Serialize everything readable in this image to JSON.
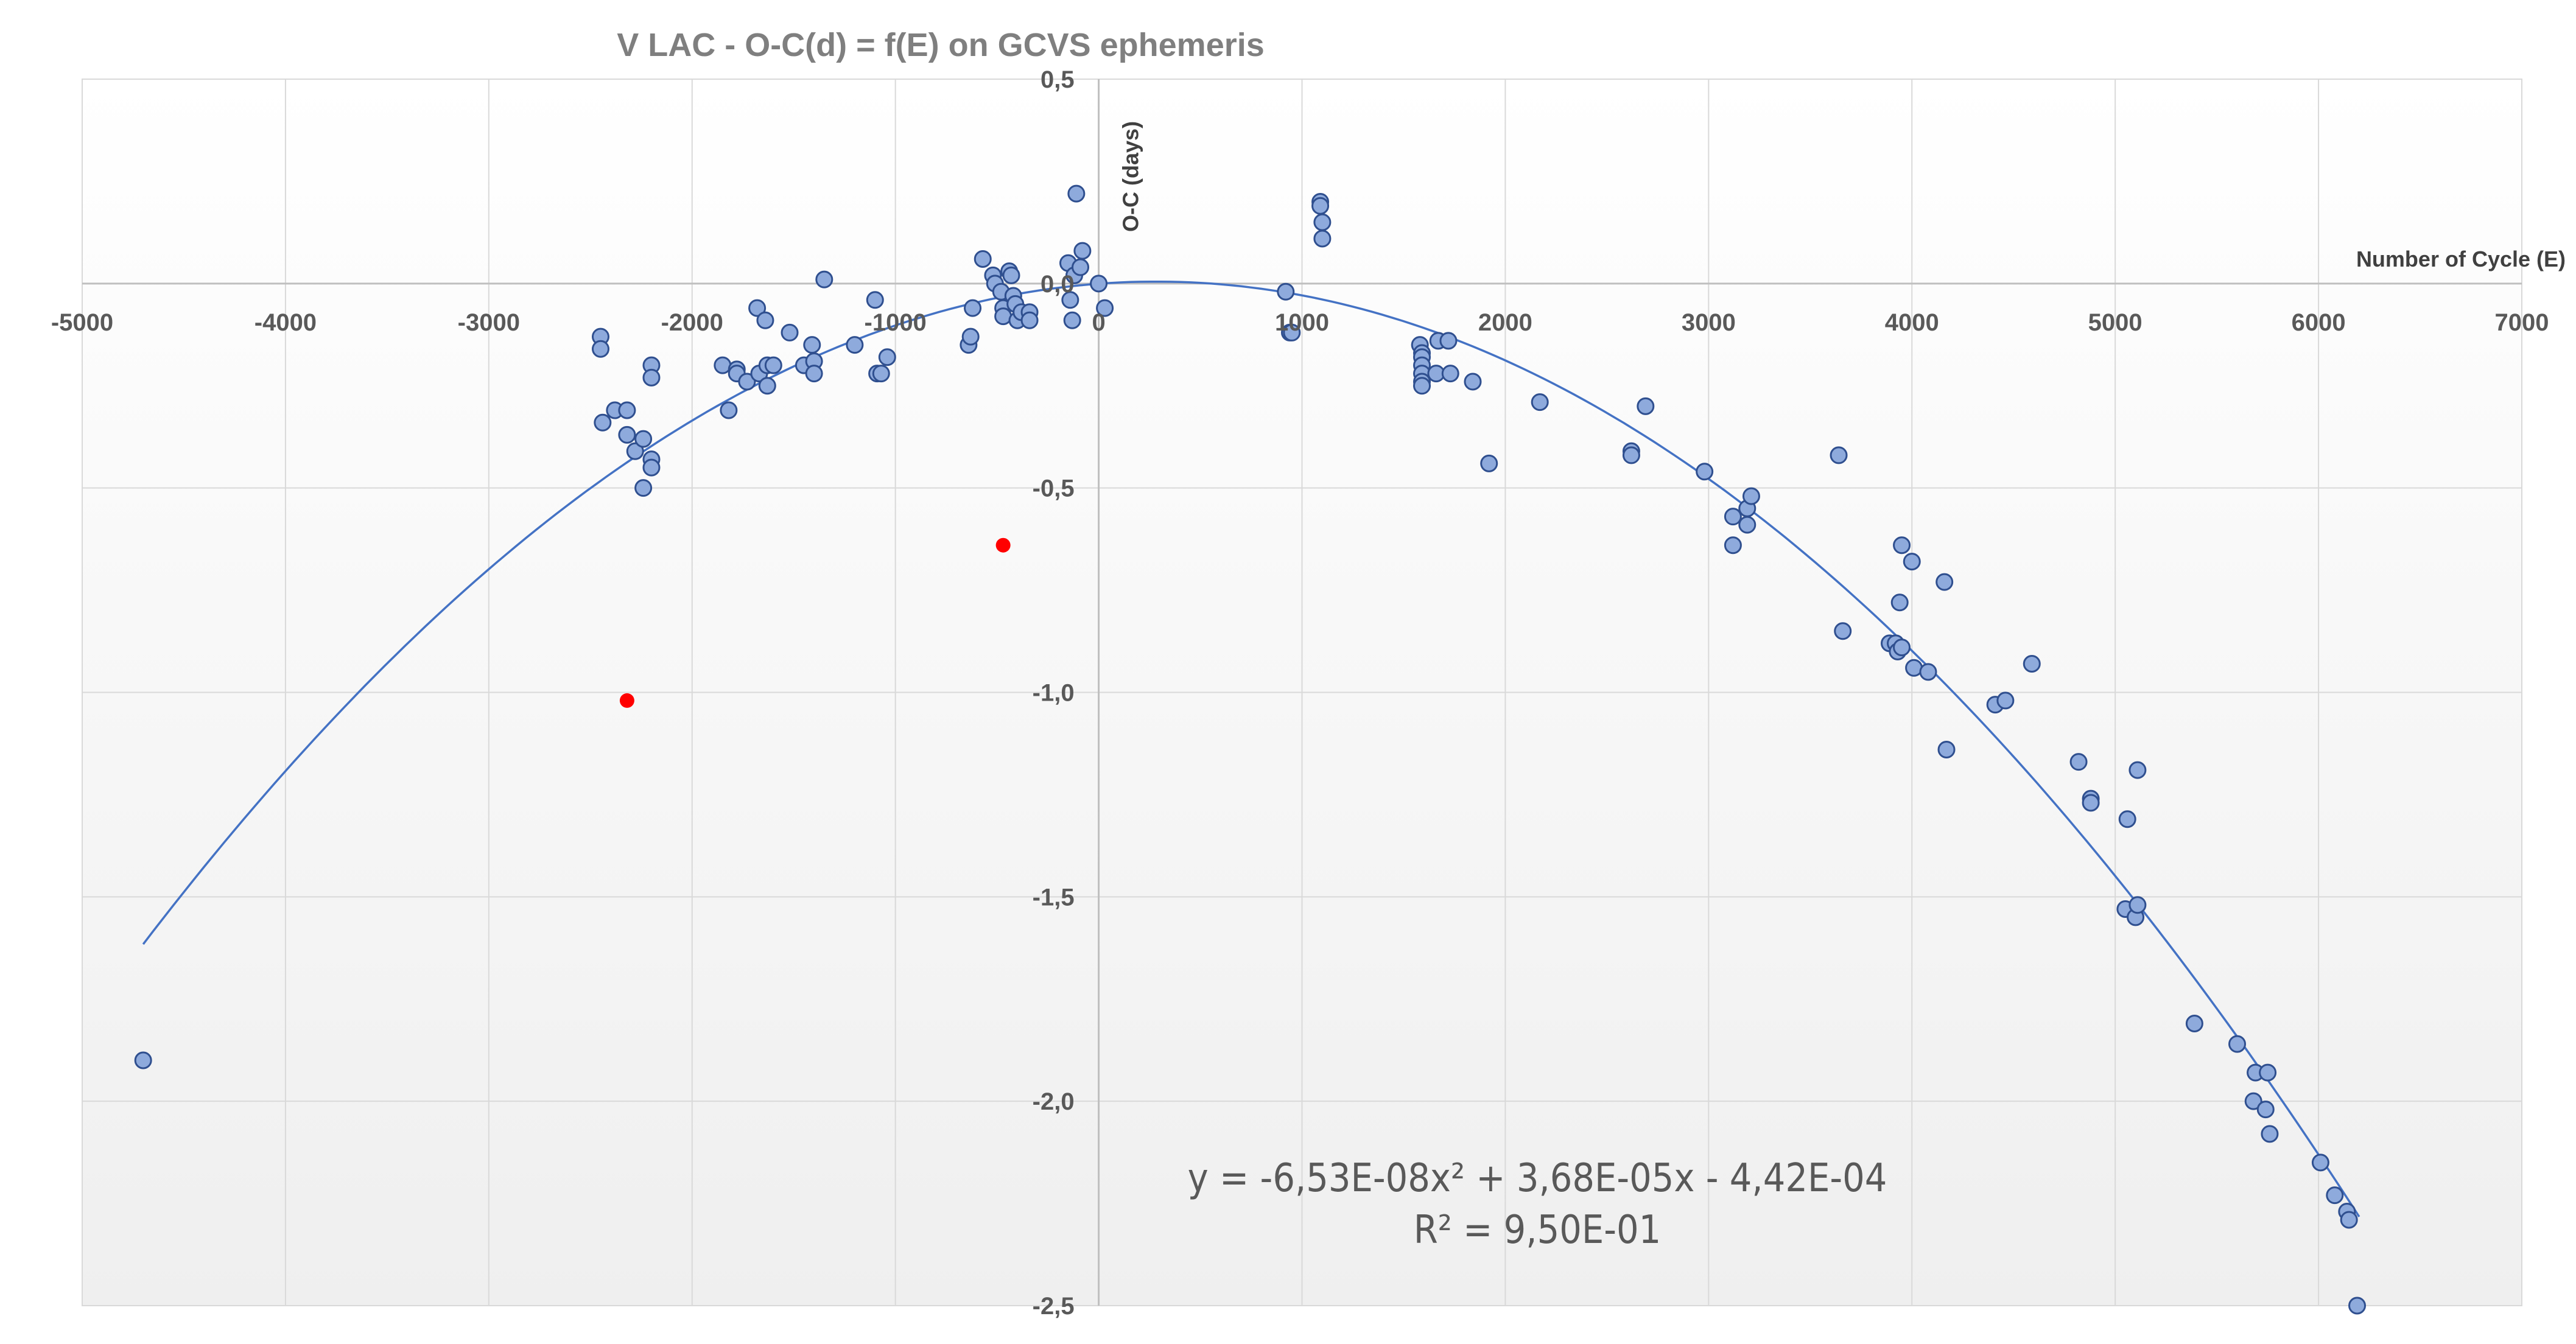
{
  "chart_data": {
    "type": "scatter",
    "title": "V LAC - O-C(d) = f(E) on GCVS ephemeris",
    "xlabel": "Number of Cycle (E)",
    "ylabel": "O-C (days)",
    "xlim": [
      -5000,
      7000
    ],
    "ylim": [
      -2.5,
      0.5
    ],
    "x_ticks": [
      -5000,
      -4000,
      -3000,
      -2000,
      -1000,
      0,
      1000,
      2000,
      3000,
      4000,
      5000,
      6000,
      7000
    ],
    "x_tick_labels": [
      "-5000",
      "-4000",
      "-3000",
      "-2000",
      "-1000",
      "0",
      "1000",
      "2000",
      "3000",
      "4000",
      "5000",
      "6000",
      "7000"
    ],
    "y_ticks": [
      0.5,
      0.0,
      -0.5,
      -1.0,
      -1.5,
      -2.0,
      -2.5
    ],
    "y_tick_labels": [
      "0,5",
      "0,0",
      "-0,5",
      "-1,0",
      "-1,5",
      "-2,0",
      "-2,5"
    ],
    "grid": true,
    "legend": "none",
    "colors": {
      "points_fill": "#8eaadc",
      "points_stroke": "#2f4f8f",
      "outlier": "#ff0000",
      "trendline": "#4472c4",
      "grid": "#d9d9d9"
    },
    "series": [
      {
        "kind": "observed",
        "points": [
          [
            -4700,
            -1.9
          ],
          [
            -2450,
            -0.13
          ],
          [
            -2450,
            -0.16
          ],
          [
            -2440,
            -0.34
          ],
          [
            -2380,
            -0.31
          ],
          [
            -2320,
            -0.31
          ],
          [
            -2320,
            -0.37
          ],
          [
            -2280,
            -0.41
          ],
          [
            -2240,
            -0.38
          ],
          [
            -2240,
            -0.5
          ],
          [
            -2200,
            -0.43
          ],
          [
            -2200,
            -0.45
          ],
          [
            -2200,
            -0.2
          ],
          [
            -2200,
            -0.23
          ],
          [
            -1850,
            -0.2
          ],
          [
            -1820,
            -0.31
          ],
          [
            -1780,
            -0.21
          ],
          [
            -1780,
            -0.22
          ],
          [
            -1730,
            -0.24
          ],
          [
            -1680,
            -0.06
          ],
          [
            -1670,
            -0.22
          ],
          [
            -1640,
            -0.09
          ],
          [
            -1630,
            -0.2
          ],
          [
            -1630,
            -0.25
          ],
          [
            -1600,
            -0.2
          ],
          [
            -1520,
            -0.12
          ],
          [
            -1450,
            -0.2
          ],
          [
            -1410,
            -0.15
          ],
          [
            -1400,
            -0.19
          ],
          [
            -1400,
            -0.22
          ],
          [
            -1350,
            0.01
          ],
          [
            -1200,
            -0.15
          ],
          [
            -1100,
            -0.04
          ],
          [
            -1090,
            -0.22
          ],
          [
            -1070,
            -0.22
          ],
          [
            -1040,
            -0.18
          ],
          [
            -640,
            -0.15
          ],
          [
            -630,
            -0.13
          ],
          [
            -570,
            0.06
          ],
          [
            -620,
            -0.06
          ],
          [
            -520,
            0.02
          ],
          [
            -510,
            0.0
          ],
          [
            -480,
            -0.02
          ],
          [
            -470,
            -0.06
          ],
          [
            -470,
            -0.08
          ],
          [
            -440,
            0.03
          ],
          [
            -430,
            0.02
          ],
          [
            -420,
            -0.03
          ],
          [
            -410,
            -0.05
          ],
          [
            -400,
            -0.09
          ],
          [
            -380,
            -0.07
          ],
          [
            -340,
            -0.07
          ],
          [
            -340,
            -0.09
          ],
          [
            -150,
            0.05
          ],
          [
            -140,
            -0.04
          ],
          [
            -130,
            -0.09
          ],
          [
            -120,
            0.02
          ],
          [
            -110,
            0.22
          ],
          [
            -90,
            0.04
          ],
          [
            -80,
            0.08
          ],
          [
            0,
            0.0
          ],
          [
            30,
            -0.06
          ],
          [
            920,
            -0.02
          ],
          [
            940,
            -0.12
          ],
          [
            950,
            -0.12
          ],
          [
            1090,
            0.2
          ],
          [
            1090,
            0.19
          ],
          [
            1100,
            0.15
          ],
          [
            1100,
            0.11
          ],
          [
            1580,
            -0.15
          ],
          [
            1590,
            -0.17
          ],
          [
            1590,
            -0.18
          ],
          [
            1590,
            -0.2
          ],
          [
            1590,
            -0.22
          ],
          [
            1590,
            -0.24
          ],
          [
            1590,
            -0.25
          ],
          [
            1660,
            -0.22
          ],
          [
            1670,
            -0.14
          ],
          [
            1720,
            -0.14
          ],
          [
            1730,
            -0.22
          ],
          [
            1840,
            -0.24
          ],
          [
            1920,
            -0.44
          ],
          [
            2170,
            -0.29
          ],
          [
            2620,
            -0.41
          ],
          [
            2620,
            -0.42
          ],
          [
            2690,
            -0.3
          ],
          [
            2980,
            -0.46
          ],
          [
            3120,
            -0.57
          ],
          [
            3120,
            -0.64
          ],
          [
            3190,
            -0.55
          ],
          [
            3190,
            -0.59
          ],
          [
            3210,
            -0.52
          ],
          [
            3640,
            -0.42
          ],
          [
            3660,
            -0.85
          ],
          [
            3890,
            -0.88
          ],
          [
            3920,
            -0.88
          ],
          [
            3930,
            -0.9
          ],
          [
            3940,
            -0.78
          ],
          [
            3950,
            -0.64
          ],
          [
            3950,
            -0.89
          ],
          [
            4000,
            -0.68
          ],
          [
            4010,
            -0.94
          ],
          [
            4080,
            -0.95
          ],
          [
            4160,
            -0.73
          ],
          [
            4170,
            -1.14
          ],
          [
            4410,
            -1.03
          ],
          [
            4460,
            -1.02
          ],
          [
            4590,
            -0.93
          ],
          [
            4820,
            -1.17
          ],
          [
            4880,
            -1.26
          ],
          [
            4880,
            -1.27
          ],
          [
            5060,
            -1.31
          ],
          [
            5050,
            -1.53
          ],
          [
            5100,
            -1.55
          ],
          [
            5110,
            -1.52
          ],
          [
            5110,
            -1.19
          ],
          [
            5390,
            -1.81
          ],
          [
            5600,
            -1.86
          ],
          [
            5680,
            -2.0
          ],
          [
            5690,
            -1.93
          ],
          [
            5740,
            -2.02
          ],
          [
            5750,
            -1.93
          ],
          [
            5760,
            -2.08
          ],
          [
            6010,
            -2.15
          ],
          [
            6080,
            -2.23
          ],
          [
            6140,
            -2.27
          ],
          [
            6150,
            -2.29
          ],
          [
            6190,
            -2.5
          ]
        ]
      },
      {
        "kind": "outliers",
        "points": [
          [
            -2320,
            -1.02
          ],
          [
            -470,
            -0.64
          ]
        ]
      }
    ],
    "trendline": {
      "type": "polynomial",
      "a": -6.53e-08,
      "b": 3.68e-05,
      "c": -0.000442,
      "x_range": [
        -4700,
        6200
      ]
    },
    "annotations": {
      "equation": "y = -6,53E-08x² + 3,68E-05x - 4,42E-04",
      "r_squared": "R² = 9,50E-01"
    }
  }
}
